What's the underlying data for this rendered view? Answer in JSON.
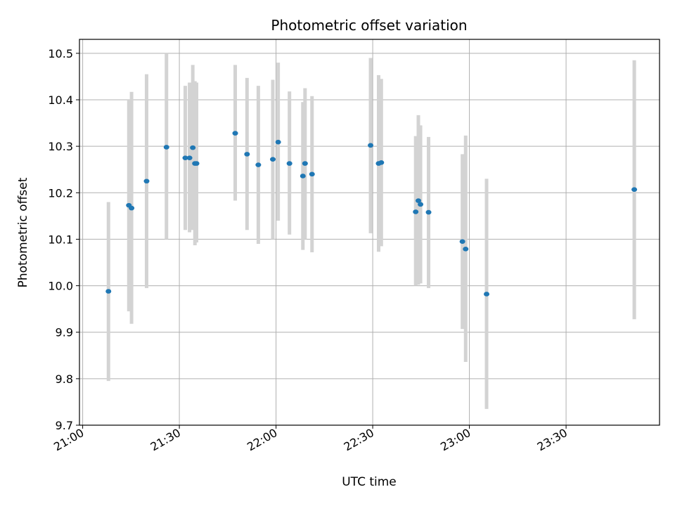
{
  "chart_data": {
    "type": "scatter",
    "title": "Photometric offset variation",
    "xlabel": "UTC time",
    "ylabel": "Photometric offset",
    "xlim": [
      "20:59:00",
      "23:59:00"
    ],
    "ylim": [
      9.7,
      10.53
    ],
    "x_ticks": [
      "21:00",
      "21:30",
      "22:00",
      "22:30",
      "23:00",
      "23:30"
    ],
    "y_ticks": [
      9.7,
      9.8,
      9.9,
      10.0,
      10.1,
      10.2,
      10.3,
      10.4,
      10.5
    ],
    "grid": true,
    "point_color": "#1f77b4",
    "errorbar_color": "#d3d3d3",
    "points": [
      {
        "time": "21:08:00",
        "value": 9.988,
        "low": 9.795,
        "high": 10.18
      },
      {
        "time": "21:14:20",
        "value": 10.173,
        "low": 9.945,
        "high": 10.4
      },
      {
        "time": "21:15:10",
        "value": 10.167,
        "low": 9.918,
        "high": 10.417
      },
      {
        "time": "21:19:50",
        "value": 10.225,
        "low": 9.995,
        "high": 10.455
      },
      {
        "time": "21:26:00",
        "value": 10.298,
        "low": 10.1,
        "high": 10.5
      },
      {
        "time": "21:31:50",
        "value": 10.275,
        "low": 10.12,
        "high": 10.43
      },
      {
        "time": "21:33:10",
        "value": 10.275,
        "low": 10.115,
        "high": 10.437
      },
      {
        "time": "21:34:10",
        "value": 10.297,
        "low": 10.12,
        "high": 10.475
      },
      {
        "time": "21:34:50",
        "value": 10.263,
        "low": 10.087,
        "high": 10.44
      },
      {
        "time": "21:35:20",
        "value": 10.263,
        "low": 10.093,
        "high": 10.437
      },
      {
        "time": "21:47:20",
        "value": 10.328,
        "low": 10.183,
        "high": 10.475
      },
      {
        "time": "21:51:00",
        "value": 10.283,
        "low": 10.12,
        "high": 10.447
      },
      {
        "time": "21:54:30",
        "value": 10.26,
        "low": 10.09,
        "high": 10.43
      },
      {
        "time": "21:59:00",
        "value": 10.272,
        "low": 10.1,
        "high": 10.443
      },
      {
        "time": "22:00:40",
        "value": 10.309,
        "low": 10.14,
        "high": 10.48
      },
      {
        "time": "22:04:10",
        "value": 10.263,
        "low": 10.11,
        "high": 10.418
      },
      {
        "time": "22:08:20",
        "value": 10.236,
        "low": 10.077,
        "high": 10.395
      },
      {
        "time": "22:09:00",
        "value": 10.263,
        "low": 10.1,
        "high": 10.425
      },
      {
        "time": "22:11:10",
        "value": 10.24,
        "low": 10.072,
        "high": 10.408
      },
      {
        "time": "22:29:20",
        "value": 10.302,
        "low": 10.113,
        "high": 10.49
      },
      {
        "time": "22:31:50",
        "value": 10.263,
        "low": 10.073,
        "high": 10.453
      },
      {
        "time": "22:32:40",
        "value": 10.265,
        "low": 10.085,
        "high": 10.445
      },
      {
        "time": "22:43:20",
        "value": 10.159,
        "low": 10.0,
        "high": 10.322
      },
      {
        "time": "22:44:10",
        "value": 10.183,
        "low": 10.002,
        "high": 10.367
      },
      {
        "time": "22:44:50",
        "value": 10.175,
        "low": 10.005,
        "high": 10.345
      },
      {
        "time": "22:47:20",
        "value": 10.158,
        "low": 9.995,
        "high": 10.32
      },
      {
        "time": "22:57:50",
        "value": 10.095,
        "low": 9.907,
        "high": 10.283
      },
      {
        "time": "22:58:50",
        "value": 10.079,
        "low": 9.836,
        "high": 10.323
      },
      {
        "time": "23:05:20",
        "value": 9.982,
        "low": 9.735,
        "high": 10.23
      },
      {
        "time": "23:51:10",
        "value": 10.207,
        "low": 9.928,
        "high": 10.485
      }
    ]
  }
}
